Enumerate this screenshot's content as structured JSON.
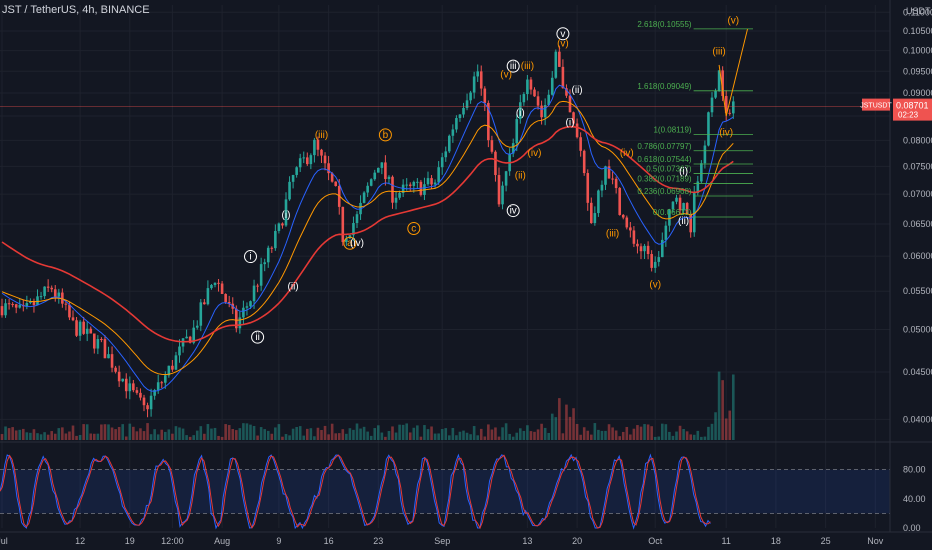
{
  "header": {
    "title": "JST / TetherUS, 4h, BINANCE",
    "currency": "USDT"
  },
  "price_badge": {
    "symbol": "JSTUSDT",
    "price": "0.08701",
    "timer": "02:23"
  },
  "colors": {
    "background": "#131722",
    "up": "#26a69a",
    "down": "#ef5350",
    "ema_fast": "#2962ff",
    "ema_mid": "#ff9800",
    "ema_slow": "#e53935",
    "fib": "#4caf50",
    "impulse": "#ffffff",
    "correction": "#ff9800",
    "stoch_k": "#2962ff",
    "stoch_d": "#e53935",
    "price_line": "#ef5350"
  },
  "chart_data": [
    {
      "type": "candlestick",
      "title": "JST / TetherUS, 4h, BINANCE",
      "ylabel": "USDT",
      "y_scale": "log",
      "ylim": [
        0.038,
        0.112
      ],
      "y_ticks": [
        "0.11000",
        "0.10500",
        "0.10000",
        "0.09500",
        "0.09000",
        "0.08500",
        "0.08000",
        "0.07500",
        "0.07000",
        "0.06500",
        "0.06000",
        "0.05500",
        "0.05000",
        "0.04500",
        "0.04000"
      ],
      "x_ticks": [
        "Jul",
        "12",
        "19",
        "12:00",
        "Aug",
        "9",
        "16",
        "23",
        "Sep",
        "13",
        "20",
        "Oct",
        "11",
        "18",
        "25",
        "Nov"
      ],
      "price_path": [
        [
          "Jul 1",
          0.053
        ],
        [
          "Jul 4",
          0.052
        ],
        [
          "Jul 8",
          0.0555
        ],
        [
          "Jul 11",
          0.0505
        ],
        [
          "Jul 15",
          0.048
        ],
        [
          "Jul 19",
          0.043
        ],
        [
          "Jul 21",
          0.041
        ],
        [
          "Jul 24",
          0.0445
        ],
        [
          "Jul 28",
          0.05
        ],
        [
          "Jul 31",
          0.057
        ],
        [
          "Aug 3",
          0.0505
        ],
        [
          "Aug 5",
          0.054
        ],
        [
          "Aug 9",
          0.064
        ],
        [
          "Aug 11",
          0.073
        ],
        [
          "Aug 14",
          0.079
        ],
        [
          "Aug 17",
          0.07
        ],
        [
          "Aug 18",
          0.063
        ],
        [
          "Aug 20",
          0.066
        ],
        [
          "Aug 23",
          0.076
        ],
        [
          "Aug 25",
          0.07
        ],
        [
          "Aug 28",
          0.071
        ],
        [
          "Aug 31",
          0.072
        ],
        [
          "Sep 3",
          0.085
        ],
        [
          "Sep 6",
          0.095
        ],
        [
          "Sep 9",
          0.068
        ],
        [
          "Sep 11",
          0.079
        ],
        [
          "Sep 13",
          0.095
        ],
        [
          "Sep 15",
          0.085
        ],
        [
          "Sep 16",
          0.09
        ],
        [
          "Sep 17",
          0.101
        ],
        [
          "Sep 18",
          0.09
        ],
        [
          "Sep 20",
          0.08
        ],
        [
          "Sep 22",
          0.065
        ],
        [
          "Sep 24",
          0.076
        ],
        [
          "Sep 27",
          0.064
        ],
        [
          "Sep 29",
          0.061
        ],
        [
          "Oct 1",
          0.0585
        ],
        [
          "Oct 4",
          0.07
        ],
        [
          "Oct 6",
          0.065
        ],
        [
          "Oct 8",
          0.08
        ],
        [
          "Oct 10",
          0.0965
        ],
        [
          "Oct 11",
          0.085
        ],
        [
          "Oct 12",
          0.087
        ]
      ],
      "series": [
        {
          "name": "",
          "type": "ema_fast",
          "color": "#2962ff"
        },
        {
          "name": "",
          "type": "ema_mid",
          "color": "#ff9800"
        },
        {
          "name": "",
          "type": "ema_slow",
          "color": "#e53935"
        }
      ],
      "fib_levels": [
        {
          "label": "2.618(0.10555)",
          "value": 0.10555
        },
        {
          "label": "1.618(0.09049)",
          "value": 0.09049
        },
        {
          "label": "1(0.08119)",
          "value": 0.08119
        },
        {
          "label": "0.786(0.07797)",
          "value": 0.07797
        },
        {
          "label": "0.618(0.07544)",
          "value": 0.07544
        },
        {
          "label": "0.5(0.07367)",
          "value": 0.07367
        },
        {
          "label": "0.382(0.07189)",
          "value": 0.07189
        },
        {
          "label": "0.236(0.06968)",
          "value": 0.06968
        },
        {
          "label": "0(0.06613)",
          "value": 0.06613
        }
      ],
      "wave_labels": [
        {
          "text": "i",
          "date": "Aug 5",
          "price": 0.0595,
          "style": "circle-white"
        },
        {
          "text": "ii",
          "date": "Aug 6",
          "price": 0.0487,
          "style": "circle-white"
        },
        {
          "text": "(i)",
          "date": "Aug 10",
          "price": 0.066,
          "style": "plain-white"
        },
        {
          "text": "(ii)",
          "date": "Aug 11",
          "price": 0.0552,
          "style": "plain-white"
        },
        {
          "text": "(iii)",
          "date": "Aug 15",
          "price": 0.0805,
          "style": "plain-orange"
        },
        {
          "text": "a",
          "date": "Aug 19",
          "price": 0.0615,
          "style": "circle-orange"
        },
        {
          "text": "(iv)",
          "date": "Aug 20",
          "price": 0.0615,
          "style": "plain-white"
        },
        {
          "text": "b",
          "date": "Aug 24",
          "price": 0.0805,
          "style": "circle-orange"
        },
        {
          "text": "c",
          "date": "Aug 28",
          "price": 0.0638,
          "style": "circle-orange"
        },
        {
          "text": "iii",
          "date": "Sep 11",
          "price": 0.0955,
          "style": "circle-white"
        },
        {
          "text": "(v)",
          "date": "Sep 10",
          "price": 0.0935,
          "style": "plain-orange"
        },
        {
          "text": "iv",
          "date": "Sep 11",
          "price": 0.0667,
          "style": "circle-white"
        },
        {
          "text": "(i)",
          "date": "Sep 12",
          "price": 0.085,
          "style": "plain-white"
        },
        {
          "text": "(iii)",
          "date": "Sep 13",
          "price": 0.0955,
          "style": "plain-orange"
        },
        {
          "text": "(ii)",
          "date": "Sep 12",
          "price": 0.0728,
          "style": "plain-orange"
        },
        {
          "text": "(iv)",
          "date": "Sep 14",
          "price": 0.077,
          "style": "plain-orange"
        },
        {
          "text": "v",
          "date": "Sep 18",
          "price": 0.1035,
          "style": "circle-white"
        },
        {
          "text": "(v)",
          "date": "Sep 18",
          "price": 0.101,
          "style": "plain-orange"
        },
        {
          "text": "(ii)",
          "date": "Sep 20",
          "price": 0.09,
          "style": "plain-white"
        },
        {
          "text": "(i)",
          "date": "Sep 19",
          "price": 0.083,
          "style": "plain-white"
        },
        {
          "text": "(iv)",
          "date": "Sep 27",
          "price": 0.077,
          "style": "plain-orange"
        },
        {
          "text": "(iii)",
          "date": "Sep 25",
          "price": 0.063,
          "style": "plain-orange"
        },
        {
          "text": "(v)",
          "date": "Oct 1",
          "price": 0.0555,
          "style": "plain-orange"
        },
        {
          "text": "(i)",
          "date": "Oct 5",
          "price": 0.0735,
          "style": "plain-white"
        },
        {
          "text": "(ii)",
          "date": "Oct 5",
          "price": 0.065,
          "style": "plain-white"
        },
        {
          "text": "(iii)",
          "date": "Oct 10",
          "price": 0.099,
          "style": "plain-orange"
        },
        {
          "text": "(iv)",
          "date": "Oct 11",
          "price": 0.081,
          "style": "plain-orange"
        },
        {
          "text": "(v)",
          "date": "Oct 12",
          "price": 0.107,
          "style": "plain-orange"
        }
      ]
    },
    {
      "type": "line",
      "title": "",
      "ylim": [
        0,
        100
      ],
      "y_ticks": [
        "80.00",
        "40.00",
        "0.00"
      ],
      "bands": [
        20,
        80
      ],
      "series": [
        {
          "name": "",
          "color": "#2962ff"
        },
        {
          "name": "",
          "color": "#e53935"
        }
      ]
    }
  ]
}
